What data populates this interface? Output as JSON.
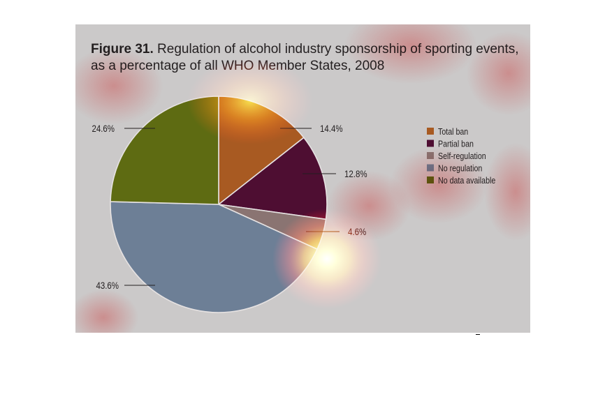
{
  "figure": {
    "label": "Figure 31.",
    "caption": "Regulation of alcohol industry sponsorship of sporting events, as a percentage of all WHO Member States, 2008"
  },
  "chart_data": {
    "type": "pie",
    "title": "Figure 31. Regulation of alcohol industry sponsorship of sporting events, as a percentage of all WHO Member States, 2008",
    "categories": [
      "Total ban",
      "Partial ban",
      "Self-regulation",
      "No regulation",
      "No data available"
    ],
    "values": [
      14.4,
      12.8,
      4.6,
      43.6,
      24.6
    ],
    "data_labels": [
      "14.4%",
      "12.8%",
      "4.6%",
      "43.6%",
      "24.6%"
    ],
    "colors": [
      "#a85a22",
      "#4e0e32",
      "#8a7472",
      "#6d7f96",
      "#5e6b12"
    ],
    "start": "12 o'clock, clockwise",
    "legend": "right",
    "overlay": "attention heatmap"
  }
}
